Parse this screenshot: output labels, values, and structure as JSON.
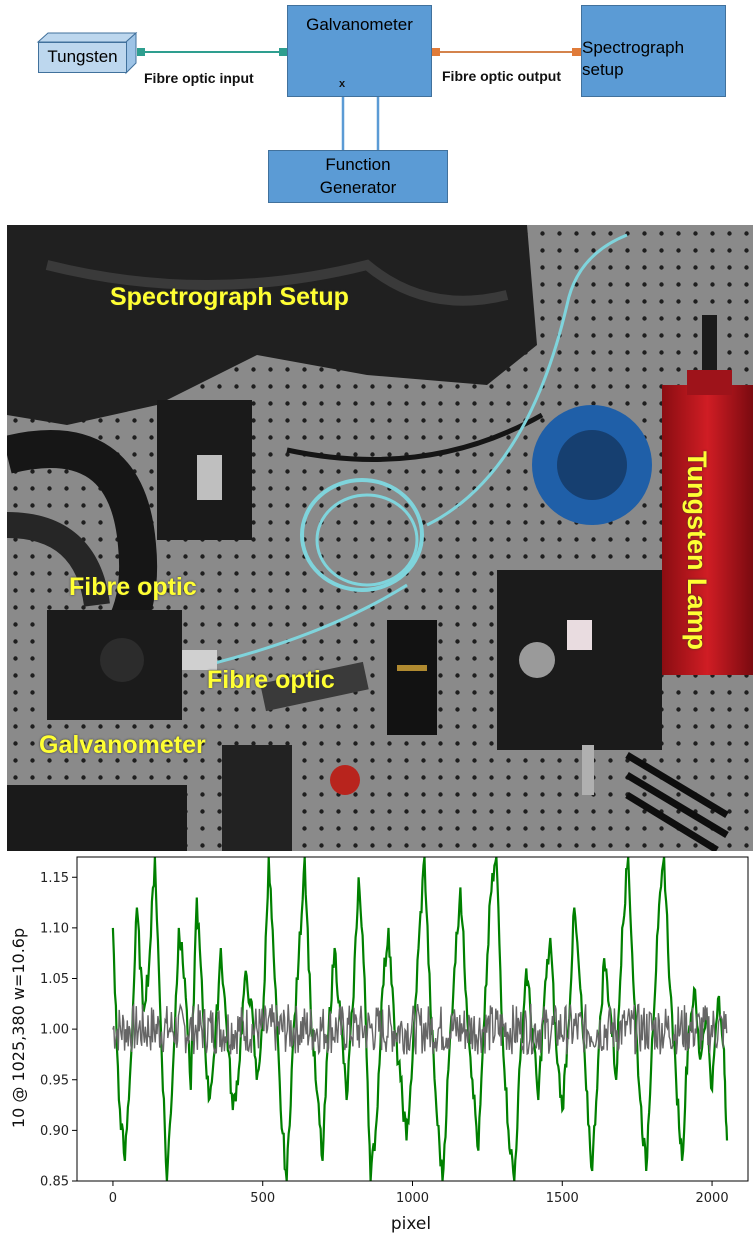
{
  "diagram": {
    "tungsten": "Tungsten",
    "galvanometer": "Galvanometer",
    "spectrograph_line1": "Spectrograph",
    "spectrograph_line2": "setup",
    "function_gen_line1": "Function",
    "function_gen_line2": "Generator",
    "label_input": "Fibre optic input",
    "label_output": "Fibre optic output",
    "x_mark": "x",
    "colors": {
      "box": "#5b9bd5",
      "box_border": "#41719c",
      "input_connector": "#2e9e8f",
      "output_connector": "#e07b39"
    }
  },
  "photo": {
    "labels": {
      "spectrograph": "Spectrograph Setup",
      "fibre_optic_1": "Fibre optic",
      "fibre_optic_2": "Fibre optic",
      "galvanometer": "Galvanometer",
      "tungsten_lamp": "Tungsten Lamp"
    },
    "label_color": "#ffff33"
  },
  "chart_data": {
    "type": "line",
    "xlabel": "pixel",
    "ylabel": "10 @ 1025,380 w=10.6p",
    "xlim": [
      -120,
      2120
    ],
    "ylim": [
      0.85,
      1.17
    ],
    "xticks": [
      0,
      500,
      1000,
      1500,
      2000
    ],
    "yticks": [
      0.85,
      0.9,
      0.95,
      1.0,
      1.05,
      1.1,
      1.15
    ],
    "grid": false,
    "series": [
      {
        "color": "#008000",
        "x": [
          0,
          20,
          40,
          60,
          80,
          100,
          120,
          140,
          160,
          180,
          200,
          220,
          240,
          260,
          280,
          300,
          320,
          340,
          360,
          380,
          400,
          420,
          440,
          460,
          480,
          500,
          520,
          540,
          560,
          580,
          600,
          620,
          640,
          660,
          680,
          700,
          720,
          740,
          760,
          780,
          800,
          820,
          840,
          860,
          880,
          900,
          920,
          940,
          960,
          980,
          1000,
          1020,
          1040,
          1060,
          1080,
          1100,
          1120,
          1140,
          1160,
          1180,
          1200,
          1220,
          1240,
          1260,
          1280,
          1300,
          1320,
          1340,
          1360,
          1380,
          1400,
          1420,
          1440,
          1460,
          1480,
          1500,
          1520,
          1540,
          1560,
          1580,
          1600,
          1620,
          1640,
          1660,
          1680,
          1700,
          1720,
          1740,
          1760,
          1780,
          1800,
          1820,
          1840,
          1860,
          1880,
          1900,
          1920,
          1940,
          1960,
          1980,
          2000,
          2020,
          2040,
          2050
        ],
        "values": [
          1.1,
          0.93,
          0.87,
          0.97,
          1.12,
          1.02,
          1.06,
          1.17,
          1.0,
          0.85,
          0.96,
          1.1,
          1.05,
          0.94,
          1.13,
          1.02,
          0.93,
          0.98,
          1.08,
          1.0,
          0.92,
          0.96,
          1.05,
          1.03,
          0.95,
          1.0,
          1.17,
          1.05,
          0.92,
          0.85,
          0.98,
          1.07,
          1.17,
          1.02,
          0.94,
          0.87,
          1.0,
          1.08,
          1.01,
          0.93,
          1.02,
          1.15,
          1.05,
          0.85,
          0.91,
          1.04,
          1.1,
          1.0,
          0.95,
          0.89,
          0.97,
          1.08,
          1.17,
          1.02,
          0.92,
          0.85,
          0.96,
          1.06,
          1.14,
          1.03,
          0.95,
          0.88,
          1.01,
          1.13,
          1.17,
          1.0,
          0.9,
          0.85,
          0.97,
          1.06,
          1.0,
          0.93,
          1.03,
          1.09,
          0.98,
          0.92,
          1.0,
          1.12,
          1.04,
          0.94,
          0.86,
          0.97,
          1.07,
          1.02,
          0.95,
          1.1,
          1.17,
          1.03,
          0.93,
          0.86,
          0.99,
          1.1,
          1.17,
          1.04,
          0.95,
          0.87,
          0.99,
          1.04,
          0.97,
          1.02,
          0.94,
          1.03,
          0.98,
          0.89
        ]
      },
      {
        "color": "#666666",
        "x": [
          0,
          2050
        ],
        "values": [
          1.0,
          1.0
        ],
        "amplitude": 0.025
      }
    ]
  }
}
